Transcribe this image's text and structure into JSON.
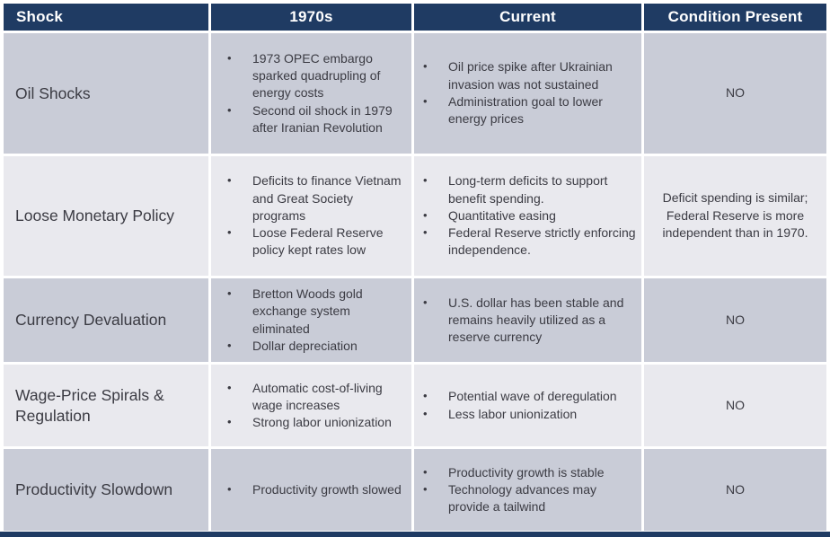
{
  "header": {
    "columns": [
      "Shock",
      "1970s",
      "Current",
      "Condition Present"
    ]
  },
  "rows": [
    {
      "shock": "Oil Shocks",
      "seventies": [
        "1973 OPEC embargo sparked quadrupling of energy costs",
        "Second oil shock in 1979 after Iranian Revolution"
      ],
      "current": [
        "Oil price spike after Ukrainian invasion was not sustained",
        "Administration goal to lower energy prices"
      ],
      "condition": "NO"
    },
    {
      "shock": "Loose Monetary Policy",
      "seventies": [
        "Deficits to finance Vietnam and Great Society programs",
        "Loose Federal Reserve policy kept rates low"
      ],
      "current": [
        "Long-term deficits to support benefit spending.",
        "Quantitative easing",
        "Federal Reserve strictly enforcing independence."
      ],
      "condition": "Deficit spending is similar; Federal Reserve is more independent than in 1970."
    },
    {
      "shock": "Currency Devaluation",
      "seventies": [
        "Bretton Woods gold exchange system eliminated",
        "Dollar depreciation"
      ],
      "current": [
        "U.S. dollar has been stable and remains heavily utilized as a reserve currency"
      ],
      "condition": "NO"
    },
    {
      "shock": "Wage-Price Spirals & Regulation",
      "seventies": [
        "Automatic cost-of-living wage increases",
        "Strong labor unionization"
      ],
      "current": [
        "Potential wave of deregulation",
        "Less labor unionization"
      ],
      "condition": "NO"
    },
    {
      "shock": "Productivity Slowdown",
      "seventies": [
        "Productivity growth slowed"
      ],
      "current": [
        "Productivity growth is stable",
        "Technology advances may provide a tailwind"
      ],
      "condition": "NO"
    }
  ],
  "colors": {
    "header_bg": "#1f3b63",
    "header_text": "#ffffff",
    "row_dark_bg": "#c9ccd7",
    "row_light_bg": "#e9e9ee",
    "body_text": "#3b3b43",
    "bottom_bar": "#1f3b63"
  }
}
